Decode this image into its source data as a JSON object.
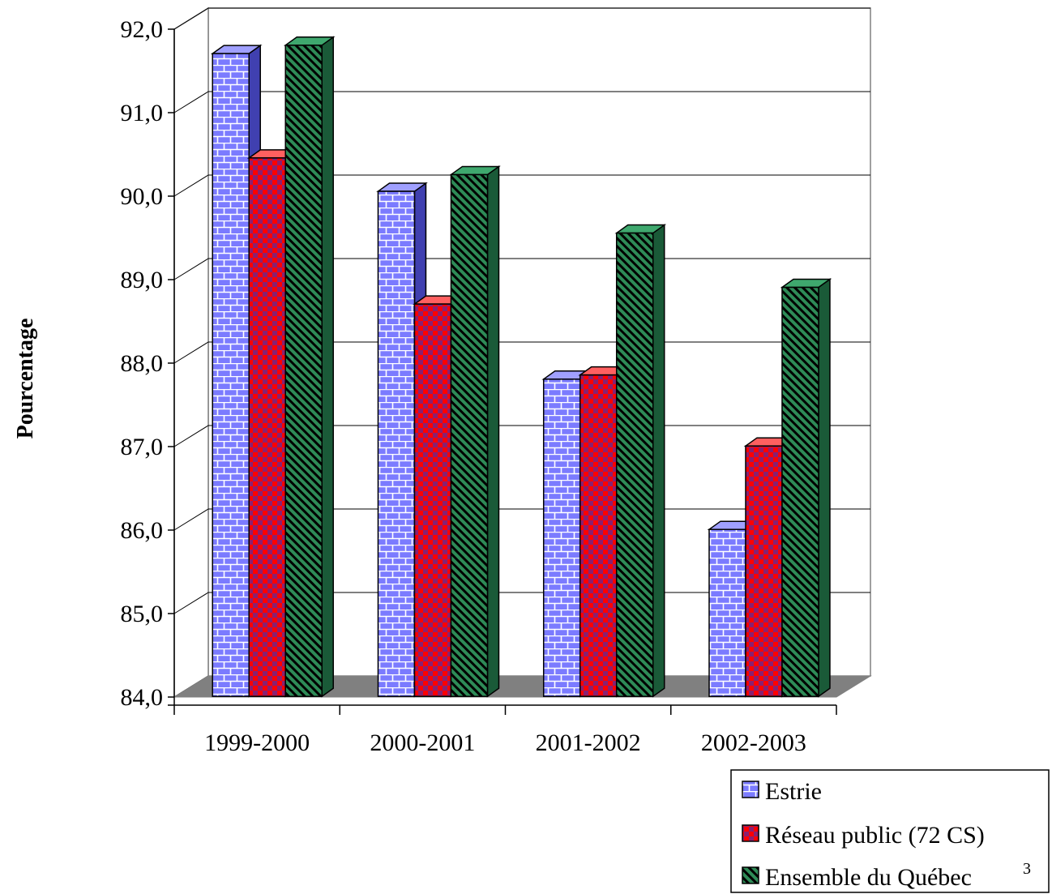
{
  "chart_data": {
    "type": "bar",
    "categories": [
      "1999-2000",
      "2000-2001",
      "2001-2002",
      "2002-2003"
    ],
    "series": [
      {
        "name": "Estrie",
        "values": [
          91.7,
          90.05,
          87.8,
          86.0
        ],
        "color": "#7B7BFF",
        "pattern": "brick"
      },
      {
        "name": "Réseau public (72 CS)",
        "values": [
          90.45,
          88.7,
          87.85,
          87.0
        ],
        "color": "#FF0000",
        "pattern": "checker"
      },
      {
        "name": "Ensemble du Québec",
        "values": [
          91.8,
          90.25,
          89.55,
          88.9
        ],
        "color": "#2E8B57",
        "pattern": "diagonal"
      }
    ],
    "legend_suffix": "3",
    "ylabel": "Pourcentage",
    "xlabel": "",
    "ylim": [
      84.0,
      92.0
    ],
    "yticks": [
      "84,0",
      "85,0",
      "86,0",
      "87,0",
      "88,0",
      "89,0",
      "90,0",
      "91,0",
      "92,0"
    ],
    "grid": true,
    "legend_position": "bottom-right",
    "three_d": true
  }
}
